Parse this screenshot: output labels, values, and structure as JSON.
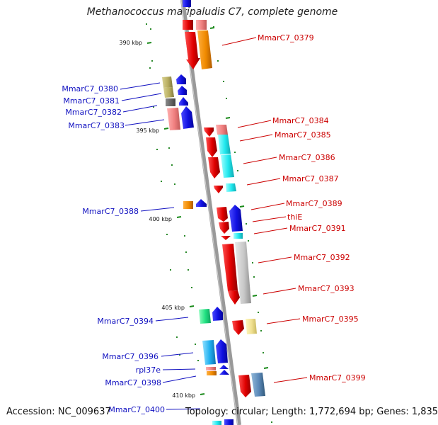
{
  "title": "Methanococcus maripaludis C7, complete genome",
  "footer": {
    "accession": "Accession: NC_009637",
    "stats": "Topology: circular; Length: 1,772,694 bp; Genes: 1,835"
  },
  "scale_labels": [
    "390 kbp",
    "395 kbp",
    "400 kbp",
    "405 kbp",
    "410 kbp"
  ],
  "genes_left": [
    "MmarC7_0380",
    "MmarC7_0381",
    "MmarC7_0382",
    "MmarC7_0383",
    "MmarC7_0388",
    "MmarC7_0394",
    "MmarC7_0396",
    "rpl37e",
    "MmarC7_0398",
    "MmarC7_0400"
  ],
  "genes_right": [
    "MmarC7_0379",
    "MmarC7_0384",
    "MmarC7_0385",
    "MmarC7_0386",
    "MmarC7_0387",
    "MmarC7_0389",
    "thiE",
    "MmarC7_0391",
    "MmarC7_0392",
    "MmarC7_0393",
    "MmarC7_0395",
    "MmarC7_0399"
  ],
  "colors": {
    "left_label": "#1010c0",
    "right_label": "#cc0000",
    "backbone": "#999999",
    "tick": "#1a8a1a",
    "forward_gene": "#e00000",
    "reverse_gene": "#1010e0"
  }
}
